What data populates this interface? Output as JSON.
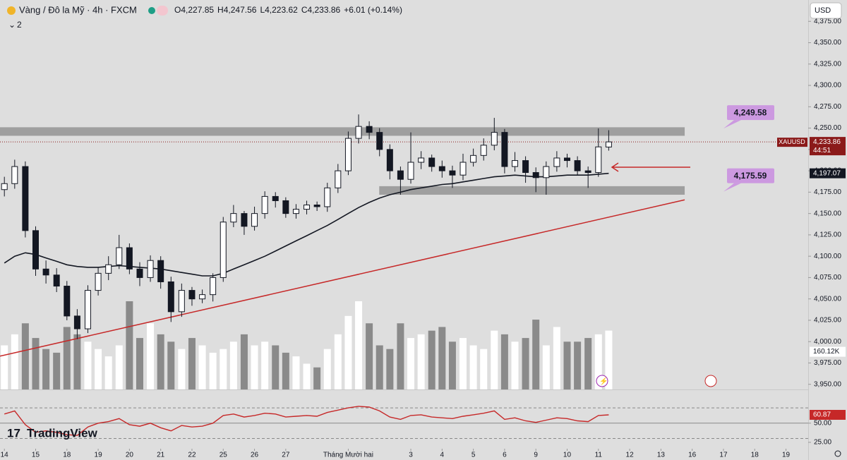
{
  "header": {
    "title": "Vàng / Đô la Mỹ · 4h · FXCM",
    "ohlc": [
      "O4,227.85",
      "H4,247.56",
      "L4,223.62",
      "C4,233.86",
      "+6.01 (+0.14%)"
    ],
    "indicators": "2",
    "currency": "USD",
    "logo": "TradingView",
    "symbol_tag": "XAUUSD",
    "countdown": "44:51"
  },
  "chart_data": {
    "type": "candlestick",
    "x": [
      0,
      0.33,
      0.67,
      1,
      1.33,
      1.67,
      2,
      2.33,
      2.67,
      3,
      3.33,
      3.67,
      4,
      4.33,
      4.67,
      5,
      5.33,
      5.67,
      6,
      6.33,
      6.67,
      7,
      7.33,
      7.67,
      8,
      8.33,
      8.67,
      9,
      9.33,
      9.67,
      10,
      10.33,
      10.67,
      11,
      11.33,
      11.67,
      12,
      12.33,
      12.67,
      13,
      13.33,
      13.67,
      14,
      14.33,
      14.67,
      15,
      15.33,
      15.67,
      16,
      16.33,
      16.67,
      17,
      17.33,
      17.67,
      18,
      18.33,
      18.67,
      19,
      19.33
    ],
    "open": [
      4178,
      4185,
      4205,
      4130,
      4085,
      4078,
      4065,
      4030,
      4015,
      4060,
      4080,
      4090,
      4110,
      4085,
      4075,
      4095,
      4070,
      4035,
      4060,
      4050,
      4055,
      4075,
      4140,
      4150,
      4135,
      4150,
      4170,
      4165,
      4150,
      4155,
      4160,
      4158,
      4180,
      4200,
      4238,
      4252,
      4245,
      4225,
      4200,
      4190,
      4210,
      4215,
      4205,
      4200,
      4195,
      4210,
      4218,
      4230,
      4245,
      4205,
      4212,
      4198,
      4192,
      4205,
      4215,
      4212,
      4200,
      4198,
      4227.85
    ],
    "high": [
      4193,
      4213,
      4211,
      4135,
      4095,
      4086,
      4071,
      4038,
      4066,
      4087,
      4100,
      4125,
      4115,
      4093,
      4101,
      4100,
      4076,
      4068,
      4064,
      4061,
      4080,
      4146,
      4160,
      4153,
      4158,
      4176,
      4175,
      4169,
      4161,
      4165,
      4164,
      4186,
      4208,
      4246,
      4266,
      4258,
      4250,
      4231,
      4205,
      4245,
      4223,
      4219,
      4212,
      4206,
      4220,
      4226,
      4238,
      4262,
      4249,
      4222,
      4217,
      4204,
      4211,
      4223,
      4220,
      4217,
      4205,
      4249.58,
      4247.56
    ],
    "low": [
      4170,
      4179,
      4122,
      4077,
      4068,
      4058,
      4025,
      4003,
      4010,
      4054,
      4072,
      4085,
      4079,
      4065,
      4070,
      4062,
      4023,
      4029,
      4042,
      4045,
      4047,
      4070,
      4134,
      4125,
      4130,
      4144,
      4157,
      4145,
      4144,
      4149,
      4153,
      4152,
      4174,
      4195,
      4232,
      4237,
      4217,
      4190,
      4172,
      4185,
      4202,
      4199,
      4192,
      4180,
      4189,
      4205,
      4212,
      4224,
      4197,
      4199,
      4186,
      4175,
      4172,
      4199,
      4204,
      4195,
      4180,
      4193,
      4223.62
    ],
    "close": [
      4185,
      4205,
      4130,
      4085,
      4078,
      4065,
      4030,
      4015,
      4060,
      4080,
      4090,
      4110,
      4085,
      4075,
      4095,
      4070,
      4035,
      4060,
      4050,
      4055,
      4075,
      4140,
      4150,
      4135,
      4150,
      4170,
      4165,
      4150,
      4155,
      4160,
      4158,
      4180,
      4200,
      4238,
      4252,
      4245,
      4225,
      4200,
      4190,
      4210,
      4215,
      4205,
      4200,
      4195,
      4210,
      4218,
      4230,
      4245,
      4205,
      4212,
      4198,
      4192,
      4205,
      4215,
      4212,
      4200,
      4198,
      4228,
      4233.86
    ],
    "last_price_label": "4,233.86",
    "up_color": "#ffffff",
    "down_color": "#131722",
    "ma": {
      "color": "#131722",
      "last_label": "4,197.07",
      "values": [
        4092,
        4100,
        4104,
        4102,
        4098,
        4094,
        4090,
        4088,
        4087,
        4087,
        4088,
        4089,
        4088,
        4087,
        4086,
        4085,
        4083,
        4081,
        4079,
        4077,
        4077,
        4080,
        4085,
        4090,
        4095,
        4100,
        4106,
        4112,
        4118,
        4124,
        4130,
        4136,
        4143,
        4150,
        4157,
        4163,
        4168,
        4172,
        4175,
        4178,
        4180,
        4182,
        4184,
        4185,
        4187,
        4189,
        4191,
        4193,
        4194,
        4195,
        4194,
        4193,
        4193,
        4194,
        4195,
        4195,
        4195,
        4196,
        4197.07
      ]
    },
    "volume": {
      "last_label": "160.12K",
      "up_color": "#ffffff",
      "down_color": "#8a8a8a",
      "values": [
        120000,
        150000,
        180000,
        140000,
        110000,
        100000,
        170000,
        150000,
        130000,
        110000,
        90000,
        120000,
        240000,
        140000,
        180000,
        150000,
        130000,
        110000,
        140000,
        120000,
        100000,
        110000,
        130000,
        150000,
        120000,
        130000,
        120000,
        100000,
        90000,
        70000,
        60000,
        110000,
        150000,
        200000,
        240000,
        180000,
        120000,
        110000,
        180000,
        140000,
        150000,
        160000,
        170000,
        130000,
        140000,
        120000,
        110000,
        160000,
        150000,
        130000,
        140000,
        190000,
        120000,
        170000,
        130000,
        130000,
        140000,
        150000,
        160120
      ]
    },
    "rsi": {
      "color": "#c62828",
      "last_label": "60.87",
      "ylim": [
        13,
        94
      ],
      "yticks": [
        {
          "value": 50,
          "label": "50.00"
        },
        {
          "value": 25,
          "label": "25.00"
        }
      ],
      "bands": [
        70,
        50,
        30
      ],
      "values": [
        62,
        66,
        48,
        38,
        40,
        38,
        35,
        34,
        45,
        50,
        52,
        56,
        48,
        46,
        50,
        44,
        40,
        47,
        45,
        46,
        50,
        60,
        62,
        58,
        60,
        63,
        62,
        58,
        59,
        60,
        59,
        64,
        67,
        70,
        72,
        71,
        66,
        58,
        55,
        60,
        61,
        58,
        57,
        56,
        59,
        61,
        63,
        66,
        55,
        57,
        53,
        51,
        54,
        57,
        56,
        53,
        52,
        60,
        60.87
      ]
    },
    "xlim": [
      -0.14,
      25.71
    ],
    "ylim": [
      3944,
      4400
    ],
    "xticks": [
      {
        "value": 0,
        "label": "14"
      },
      {
        "value": 1,
        "label": "15"
      },
      {
        "value": 2,
        "label": "18"
      },
      {
        "value": 3,
        "label": "19"
      },
      {
        "value": 4,
        "label": "20"
      },
      {
        "value": 5,
        "label": "21"
      },
      {
        "value": 6,
        "label": "22"
      },
      {
        "value": 7,
        "label": "25"
      },
      {
        "value": 8,
        "label": "26"
      },
      {
        "value": 9,
        "label": "27"
      },
      {
        "value": 11,
        "label": "Tháng Mười hai"
      },
      {
        "value": 13,
        "label": "3"
      },
      {
        "value": 14,
        "label": "4"
      },
      {
        "value": 15,
        "label": "5"
      },
      {
        "value": 16,
        "label": "6"
      },
      {
        "value": 17,
        "label": "9"
      },
      {
        "value": 18,
        "label": "10"
      },
      {
        "value": 19,
        "label": "11"
      },
      {
        "value": 20,
        "label": "12"
      },
      {
        "value": 21,
        "label": "13"
      },
      {
        "value": 22,
        "label": "16"
      },
      {
        "value": 23,
        "label": "17"
      },
      {
        "value": 24,
        "label": "18"
      },
      {
        "value": 25,
        "label": "19"
      }
    ],
    "yticks": [
      {
        "value": 3950,
        "label": "3,950.00"
      },
      {
        "value": 3975,
        "label": "3,975.00"
      },
      {
        "value": 4000,
        "label": "4,000.00"
      },
      {
        "value": 4025,
        "label": "4,025.00"
      },
      {
        "value": 4050,
        "label": "4,050.00"
      },
      {
        "value": 4075,
        "label": "4,075.00"
      },
      {
        "value": 4100,
        "label": "4,100.00"
      },
      {
        "value": 4125,
        "label": "4,125.00"
      },
      {
        "value": 4150,
        "label": "4,150.00"
      },
      {
        "value": 4175,
        "label": "4,175.00"
      },
      {
        "value": 4200,
        "label": "4,200.00"
      },
      {
        "value": 4225,
        "label": "4,225.00"
      },
      {
        "value": 4250,
        "label": "4,250.00"
      },
      {
        "value": 4275,
        "label": "4,275.00"
      },
      {
        "value": 4300,
        "label": "4,300.00"
      },
      {
        "value": 4325,
        "label": "4,325.00"
      },
      {
        "value": 4350,
        "label": "4,350.00"
      },
      {
        "value": 4375,
        "label": "4,375.00"
      }
    ],
    "zones": [
      {
        "from": 4241,
        "to": 4251,
        "x": [
          -0.14,
          21.76
        ]
      },
      {
        "from": 4172,
        "to": 4182,
        "x": [
          11.99,
          21.76
        ]
      }
    ],
    "zone_color": "#8a8a8a",
    "trendline": {
      "x": [
        -0.14,
        21.76
      ],
      "y": [
        3983,
        4166
      ],
      "color": "#c62828"
    },
    "annotations": [
      {
        "value": 4249.58,
        "label": "4,249.58"
      },
      {
        "value": 4175.59,
        "label": "4,175.59"
      }
    ],
    "annotation_color": "#cc99e0"
  }
}
